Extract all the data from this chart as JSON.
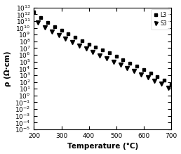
{
  "title": "",
  "xlabel": "Temperature (°C)",
  "ylabel": "ρ (Ω·cm)",
  "xlim": [
    200,
    700
  ],
  "ylim_log": [
    1e-05,
    10000000000000.0
  ],
  "legend_labels": [
    "L3",
    "S3"
  ],
  "background_color": "#ffffff",
  "series1_name": "L3",
  "series2_name": "S3",
  "series1_x": [
    200,
    225,
    250,
    275,
    300,
    325,
    350,
    375,
    400,
    425,
    450,
    475,
    500,
    525,
    550,
    575,
    600,
    625,
    650,
    675,
    700
  ],
  "series1_y": [
    2000000000000.0,
    300000000000.0,
    60000000000.0,
    15000000000.0,
    4000000000.0,
    1200000000.0,
    400000000.0,
    120000000.0,
    40000000.0,
    15000000.0,
    5000000.0,
    2000000.0,
    600000.0,
    200000.0,
    60000.0,
    20000.0,
    6000.0,
    2000.0,
    600.0,
    180.0,
    40.0
  ],
  "series2_x": [
    215,
    240,
    265,
    290,
    315,
    340,
    365,
    390,
    415,
    440,
    465,
    490,
    515,
    540,
    565,
    590,
    615,
    640,
    665,
    690
  ],
  "series2_y": [
    60000000000.0,
    12000000000.0,
    3000000000.0,
    800000000.0,
    250000000.0,
    80000000.0,
    25000000.0,
    8000000.0,
    2800000.0,
    900000.0,
    300000.0,
    100000.0,
    35000.0,
    12000.0,
    4000.0,
    1400.0,
    450.0,
    150.0,
    50.0,
    15.0
  ]
}
